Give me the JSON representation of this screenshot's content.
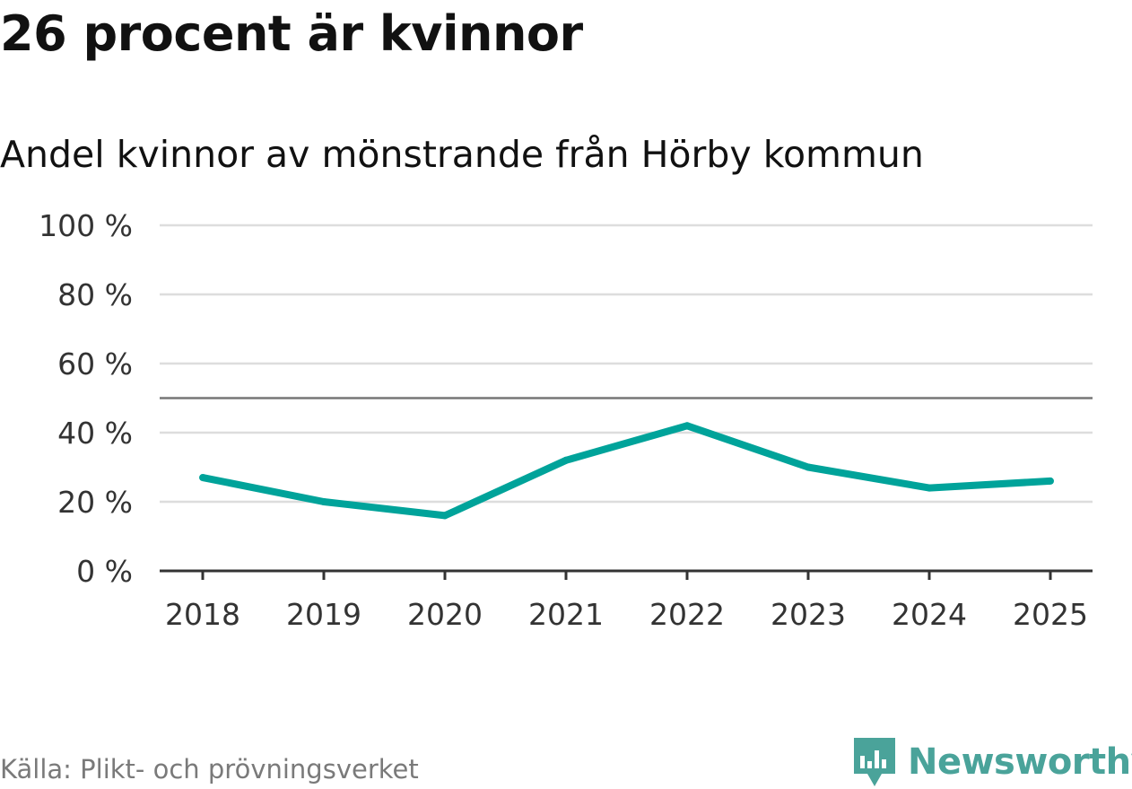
{
  "title": "26 procent är kvinnor",
  "subtitle": "Andel kvinnor av mönstrande från Hörby kommun",
  "source": "Källa: Plikt- och prövningsverket",
  "logo_text": "Newsworthy",
  "colors": {
    "line": "#00a39a",
    "grid": "#dddddd",
    "axis": "#333333",
    "reference": "#777777",
    "logo": "#4aa39a"
  },
  "chart_data": {
    "type": "line",
    "title": "26 procent är kvinnor",
    "subtitle": "Andel kvinnor av mönstrande från Hörby kommun",
    "categories": [
      "2018",
      "2019",
      "2020",
      "2021",
      "2022",
      "2023",
      "2024",
      "2025"
    ],
    "series": [
      {
        "values": [
          27,
          20,
          16,
          32,
          42,
          30,
          24,
          26
        ]
      }
    ],
    "reference_line": 50,
    "ylim": [
      0,
      100
    ],
    "yticks": [
      0,
      20,
      40,
      60,
      80,
      100
    ],
    "ytick_labels": [
      "0 %",
      "20 %",
      "40 %",
      "60 %",
      "80 %",
      "100 %"
    ],
    "xlabel": "",
    "ylabel": "",
    "grid": true,
    "legend": "none"
  }
}
